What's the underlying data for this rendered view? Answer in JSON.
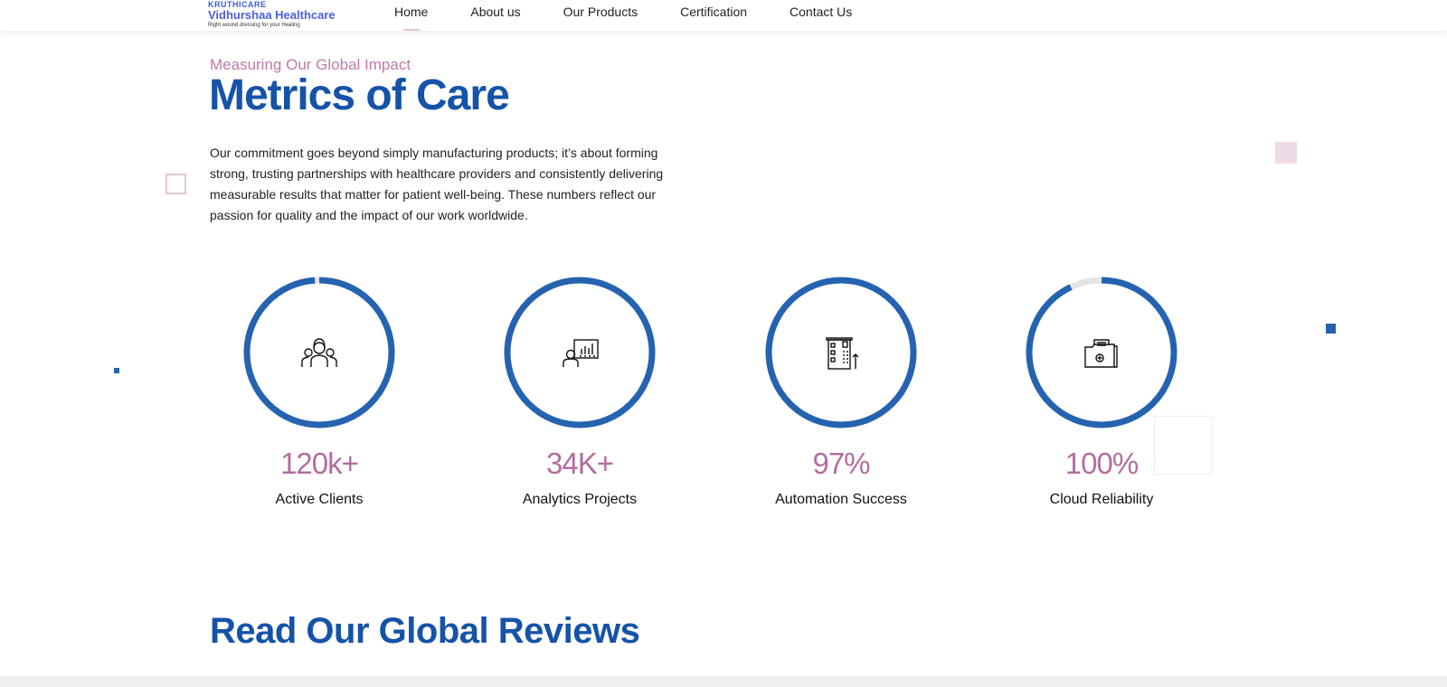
{
  "header": {
    "logo_small": "KRUTHICARE",
    "logo_brand": "Vidhurshaa Healthcare",
    "logo_tagline": "Right wound dressing for your Healing",
    "nav": [
      {
        "label": "Home",
        "active": true
      },
      {
        "label": "About us"
      },
      {
        "label": "Our Products"
      },
      {
        "label": "Certification"
      },
      {
        "label": "Contact Us"
      }
    ]
  },
  "section": {
    "kicker": "Measuring Our Global Impact",
    "title": "Metrics of Care",
    "description": "Our commitment goes beyond simply manufacturing products; it’s about forming strong, trusting partnerships with healthcare providers and consistently delivering measurable results that matter for patient well-being. These numbers reflect our passion for quality and the impact of our work worldwide."
  },
  "metrics": [
    {
      "value": "120k+",
      "label": "Active Clients",
      "icon": "people-group-icon",
      "progress": 0.99
    },
    {
      "value": "34K+",
      "label": "Analytics Projects",
      "icon": "presentation-chart-icon",
      "progress": 1.0
    },
    {
      "value": "97%",
      "label": "Automation Success",
      "icon": "building-growth-icon",
      "progress": 1.0
    },
    {
      "value": "100%",
      "label": "Cloud Reliability",
      "icon": "medical-folder-icon",
      "progress": 0.93
    }
  ],
  "reviews": {
    "title": "Read Our Global Reviews"
  },
  "colors": {
    "ring": "#2563b0",
    "ring_track": "#e5e5e5",
    "accent_pink": "#b36d9f",
    "title_blue": "#1553a8"
  }
}
